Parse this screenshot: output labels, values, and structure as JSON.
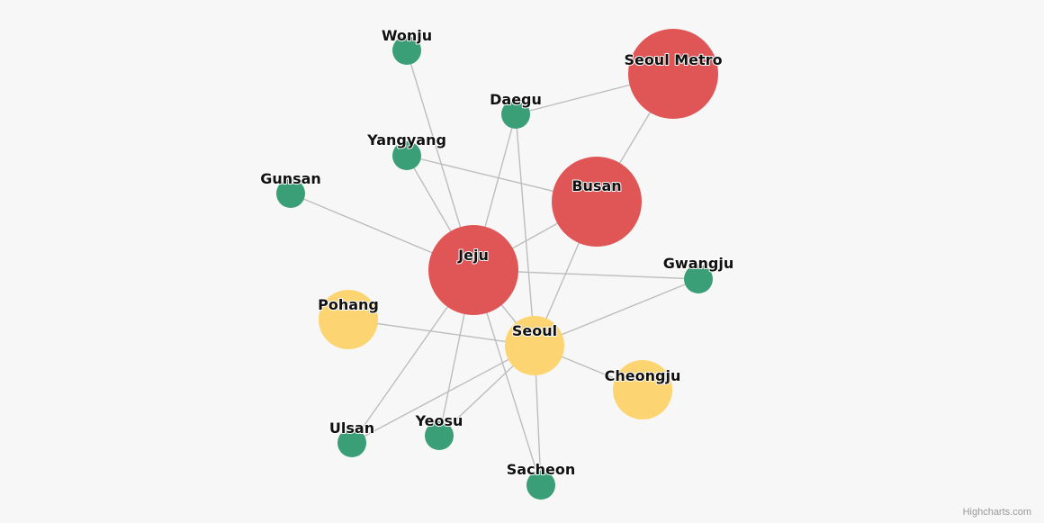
{
  "diagram": {
    "type": "network-graph",
    "colors": {
      "red": "#e05555",
      "yellow": "#fcd572",
      "green": "#3a9e77",
      "edge": "#bdbdbd"
    },
    "nodes": [
      {
        "id": "Seoul Metro",
        "group": "red"
      },
      {
        "id": "Busan",
        "group": "red"
      },
      {
        "id": "Jeju",
        "group": "red"
      },
      {
        "id": "Seoul",
        "group": "yellow"
      },
      {
        "id": "Pohang",
        "group": "yellow"
      },
      {
        "id": "Cheongju",
        "group": "yellow"
      },
      {
        "id": "Wonju",
        "group": "green"
      },
      {
        "id": "Daegu",
        "group": "green"
      },
      {
        "id": "Yangyang",
        "group": "green"
      },
      {
        "id": "Gunsan",
        "group": "green"
      },
      {
        "id": "Gwangju",
        "group": "green"
      },
      {
        "id": "Ulsan",
        "group": "green"
      },
      {
        "id": "Yeosu",
        "group": "green"
      },
      {
        "id": "Sacheon",
        "group": "green"
      }
    ],
    "edges": [
      [
        "Daegu",
        "Seoul Metro"
      ],
      [
        "Seoul Metro",
        "Busan"
      ],
      [
        "Yangyang",
        "Busan"
      ],
      [
        "Busan",
        "Jeju"
      ],
      [
        "Busan",
        "Seoul"
      ],
      [
        "Wonju",
        "Jeju"
      ],
      [
        "Daegu",
        "Jeju"
      ],
      [
        "Daegu",
        "Seoul"
      ],
      [
        "Yangyang",
        "Jeju"
      ],
      [
        "Gunsan",
        "Jeju"
      ],
      [
        "Jeju",
        "Gwangju"
      ],
      [
        "Jeju",
        "Ulsan"
      ],
      [
        "Jeju",
        "Yeosu"
      ],
      [
        "Jeju",
        "Sacheon"
      ],
      [
        "Jeju",
        "Seoul"
      ],
      [
        "Pohang",
        "Seoul"
      ],
      [
        "Seoul",
        "Gwangju"
      ],
      [
        "Seoul",
        "Ulsan"
      ],
      [
        "Seoul",
        "Yeosu"
      ],
      [
        "Seoul",
        "Sacheon"
      ],
      [
        "Seoul",
        "Cheongju"
      ]
    ]
  },
  "credit": "Highcharts.com"
}
